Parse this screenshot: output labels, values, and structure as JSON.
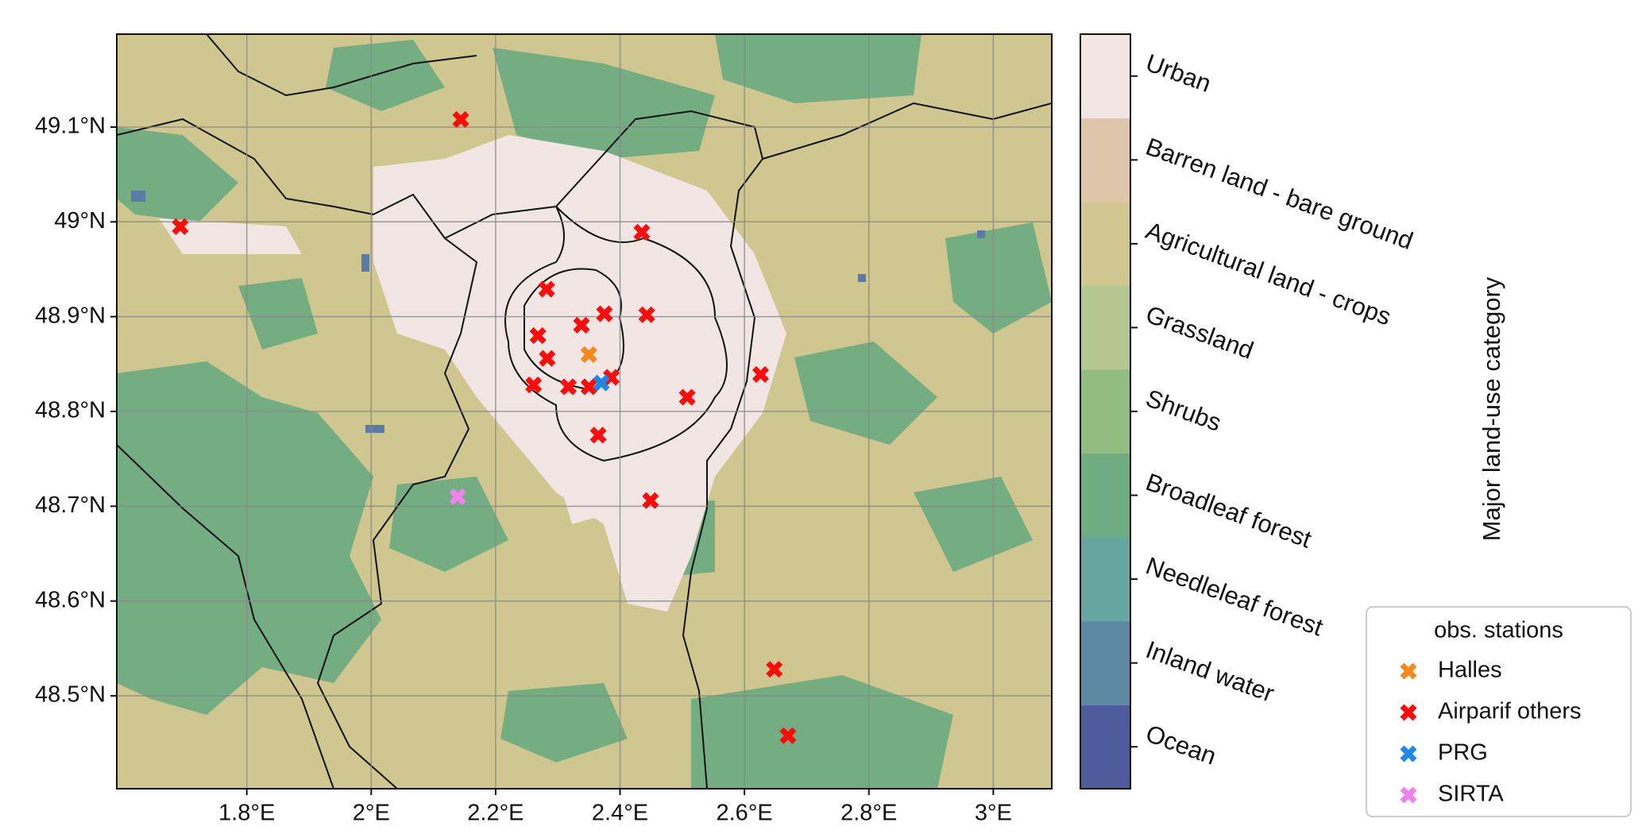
{
  "chart_data": {
    "type": "map",
    "xlim": [
      1.591,
      3.094
    ],
    "ylim": [
      48.402,
      49.198
    ],
    "xticks": [
      {
        "value": 1.8,
        "label": "1.8°E"
      },
      {
        "value": 2,
        "label": "2°E"
      },
      {
        "value": 2.2,
        "label": "2.2°E"
      },
      {
        "value": 2.4,
        "label": "2.4°E"
      },
      {
        "value": 2.6,
        "label": "2.6°E"
      },
      {
        "value": 2.8,
        "label": "2.8°E"
      },
      {
        "value": 3,
        "label": "3°E"
      }
    ],
    "yticks": [
      {
        "value": 48.5,
        "label": "48.5°N"
      },
      {
        "value": 48.6,
        "label": "48.6°N"
      },
      {
        "value": 48.7,
        "label": "48.7°N"
      },
      {
        "value": 48.8,
        "label": "48.8°N"
      },
      {
        "value": 48.9,
        "label": "48.9°N"
      },
      {
        "value": 49,
        "label": "49°N"
      },
      {
        "value": 49.1,
        "label": "49.1°N"
      }
    ],
    "grid": true,
    "colorbar": {
      "label": "Major land-use category",
      "categories": [
        "Ocean",
        "Inland water",
        "Needleleaf forest",
        "Broadleaf forest",
        "Shrubs",
        "Grassland",
        "Agricultural land - crops",
        "Barren land - bare ground",
        "Urban"
      ],
      "colors": [
        "#4f5c9c",
        "#5d88a4",
        "#66a69e",
        "#6fac82",
        "#92bd80",
        "#b6c690",
        "#cfc690",
        "#dfc5aa",
        "#f2e6e4"
      ]
    },
    "legend": {
      "title": "obs. stations",
      "position": "lower right"
    },
    "series": [
      {
        "name": "Halles",
        "color": "#f5881f",
        "x": [
          2.35
        ],
        "y": [
          48.86
        ]
      },
      {
        "name": "Airparif others",
        "color": "#ff0a0a",
        "x": [
          2.144,
          1.693,
          2.435,
          2.282,
          2.375,
          2.443,
          2.338,
          2.268,
          2.283,
          2.386,
          2.261,
          2.317,
          2.35,
          2.508,
          2.626,
          2.365,
          2.449,
          2.648,
          2.67
        ],
        "y": [
          49.108,
          48.995,
          48.989,
          48.929,
          48.903,
          48.902,
          48.891,
          48.88,
          48.856,
          48.836,
          48.828,
          48.826,
          48.826,
          48.815,
          48.839,
          48.775,
          48.706,
          48.528,
          48.458
        ]
      },
      {
        "name": "PRG",
        "color": "#1e88e5",
        "x": [
          2.37
        ],
        "y": [
          48.83
        ]
      },
      {
        "name": "SIRTA",
        "color": "#ee82ee",
        "x": [
          2.139
        ],
        "y": [
          48.71
        ]
      }
    ]
  }
}
